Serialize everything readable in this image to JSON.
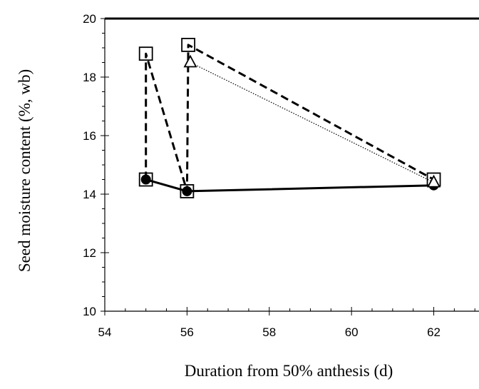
{
  "chart_data": {
    "type": "line",
    "xlabel": "Duration from 50% anthesis (d)",
    "ylabel": "Seed moisture content (%, wb)",
    "xlim": [
      54,
      63.1
    ],
    "ylim": [
      10,
      20
    ],
    "x_ticks": [
      "54",
      "56",
      "58",
      "60",
      "62"
    ],
    "y_ticks": [
      "10",
      "12",
      "14",
      "16",
      "18",
      "20"
    ],
    "grid": false,
    "legend": "none",
    "series": [
      {
        "marker": "filled-circle",
        "line": "solid",
        "color": "#000000",
        "points": [
          [
            55,
            14.5
          ],
          [
            56,
            14.1
          ],
          [
            62,
            14.3
          ]
        ]
      },
      {
        "marker": "open-square",
        "line": "dashed",
        "color": "#000000",
        "points": [
          [
            55,
            14.5
          ],
          [
            55,
            18.8
          ],
          [
            56,
            14.1
          ],
          [
            56.03,
            19.1
          ],
          [
            62,
            14.5
          ]
        ]
      },
      {
        "marker": "open-triangle",
        "line": "dotted",
        "color": "#000000",
        "points": [
          [
            56.08,
            18.5
          ],
          [
            62,
            14.4
          ]
        ]
      }
    ]
  }
}
